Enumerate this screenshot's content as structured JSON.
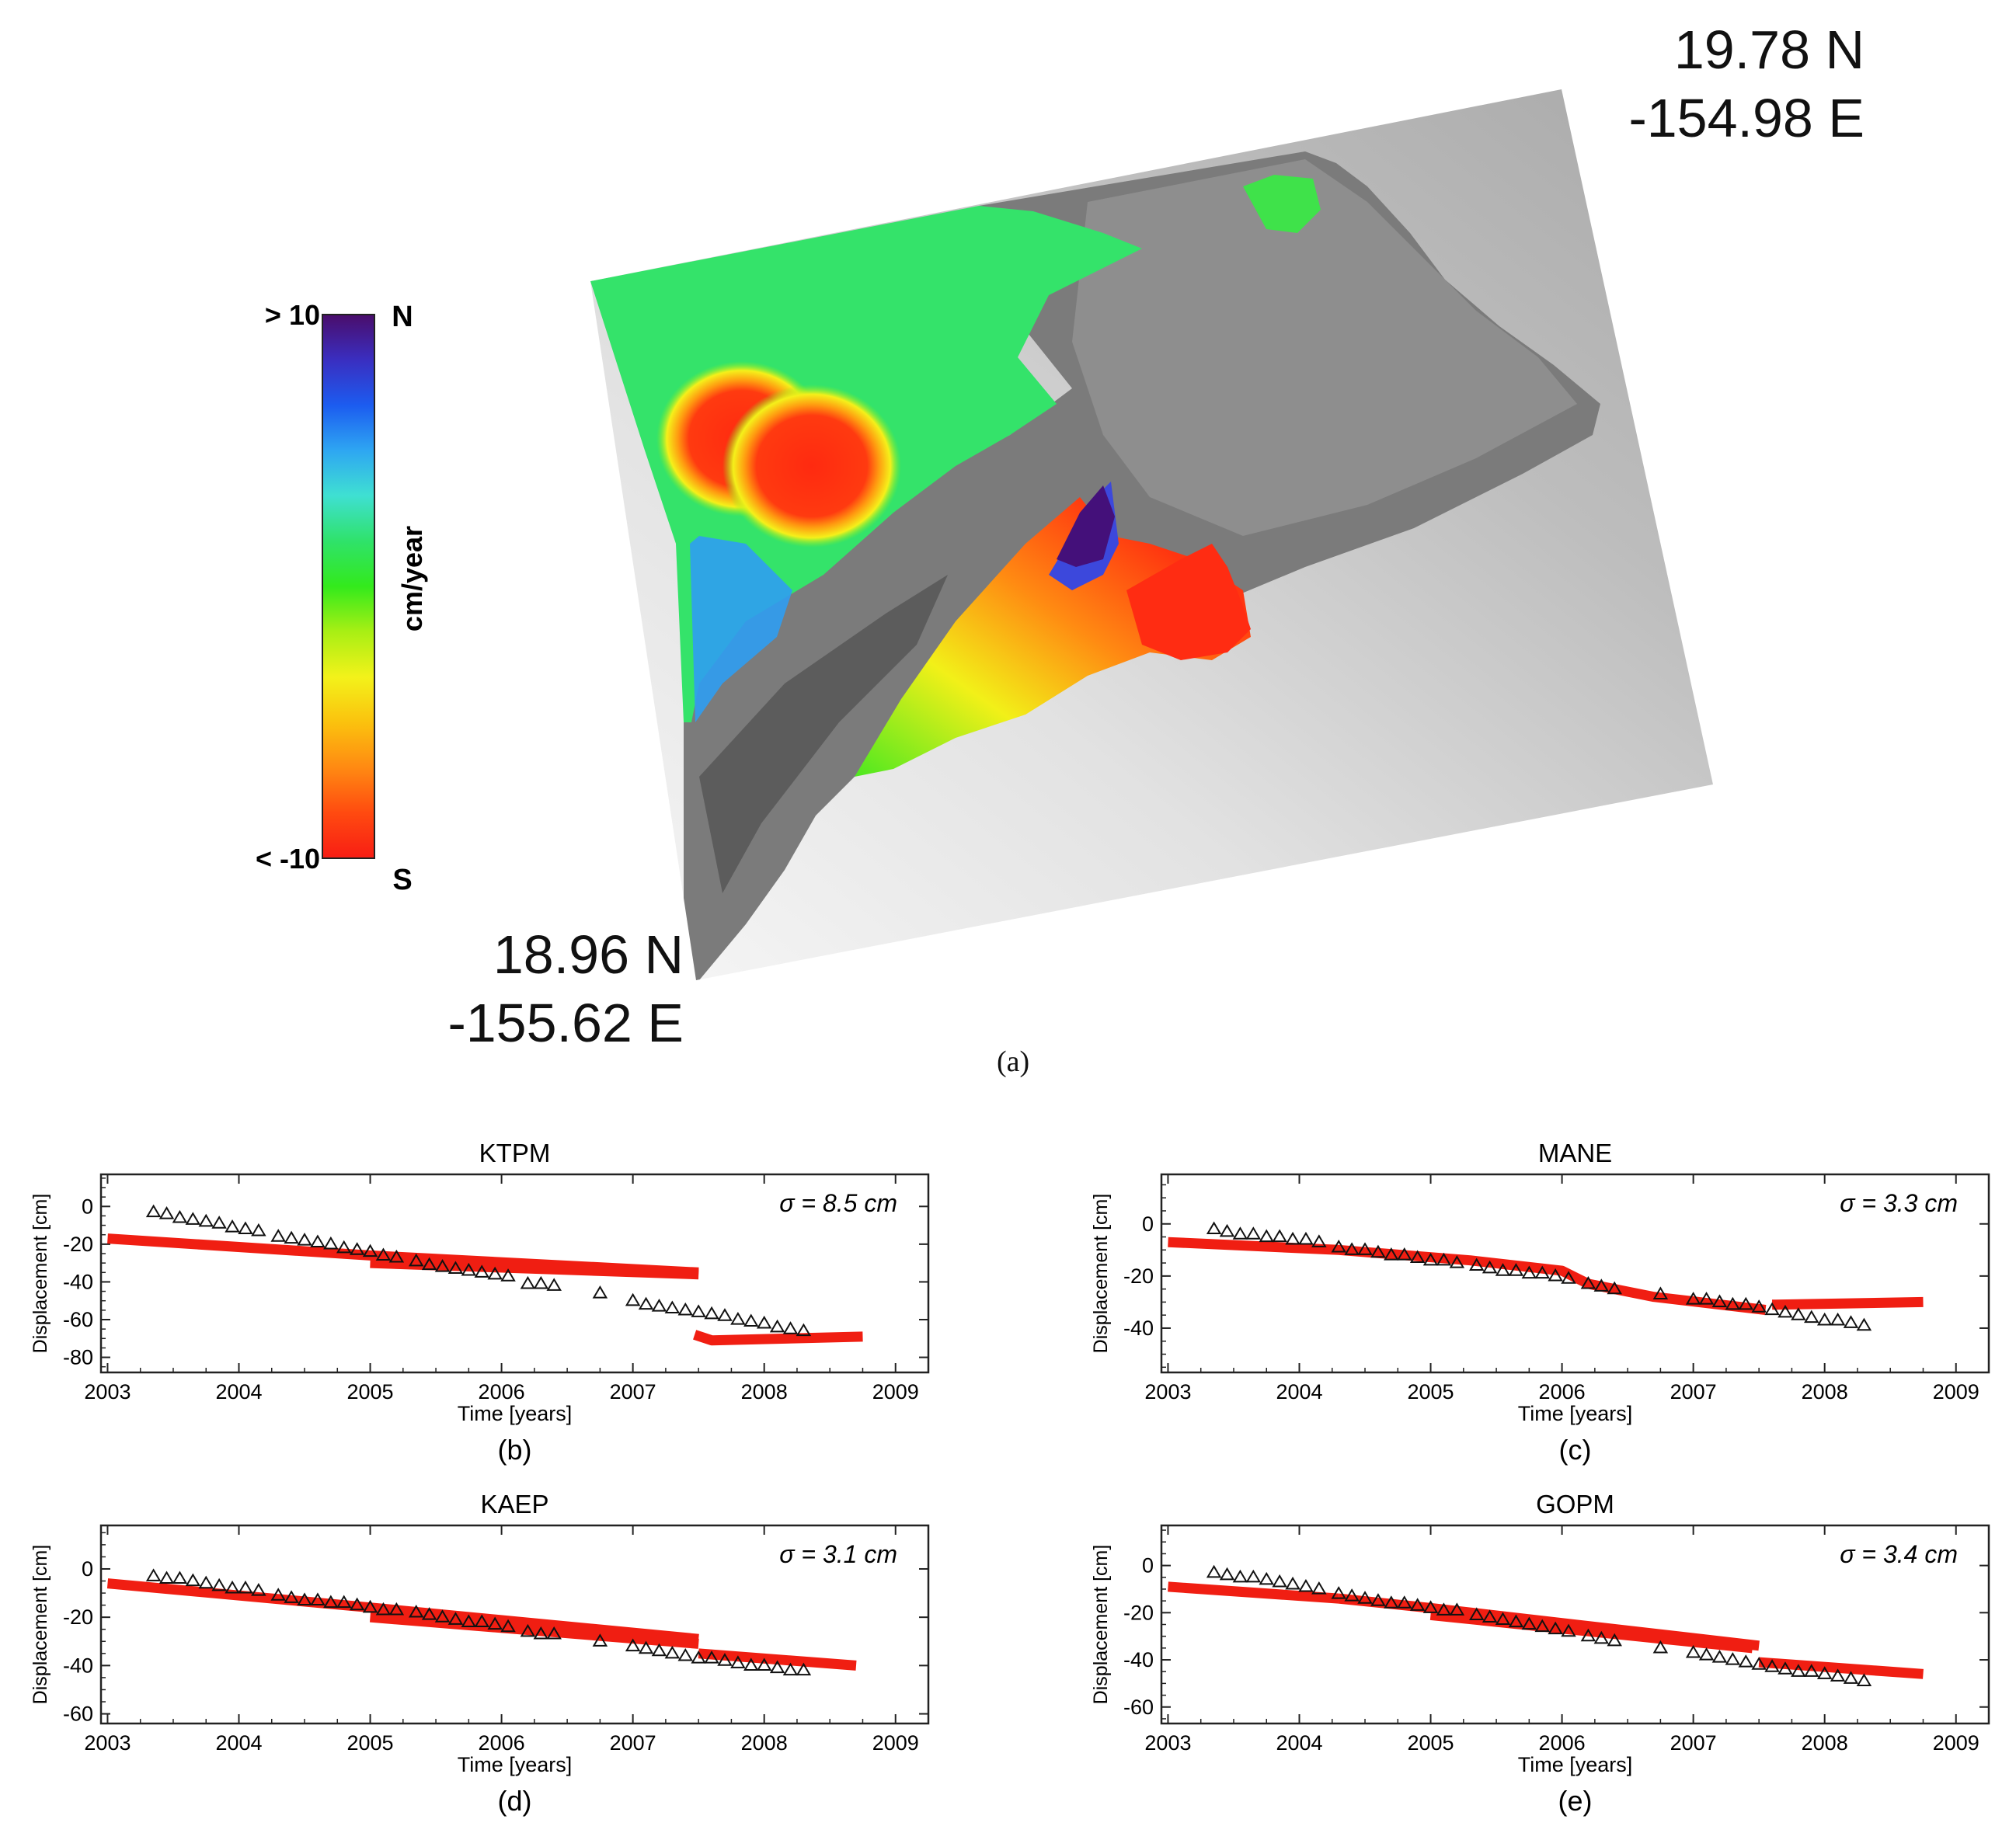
{
  "figure": {
    "caption_a": "(a)",
    "corner_top_right": {
      "lat": "19.78 N",
      "lon": "-154.98 E"
    },
    "corner_bottom_left": {
      "lat": "18.96 N",
      "lon": "-155.62 E"
    },
    "colorbar": {
      "max_label": "> 10",
      "min_label": "< -10",
      "unit_label": "cm/year",
      "top_dir": "N",
      "bottom_dir": "S",
      "colors": [
        "#4a0d6b",
        "#3a2ec0",
        "#1c5cf0",
        "#2ea6f2",
        "#3fe0d2",
        "#2fe26a",
        "#33ea1c",
        "#a8ef14",
        "#f3f21a",
        "#fbc20e",
        "#ff8a12",
        "#ff4a10",
        "#f81d14"
      ]
    }
  },
  "colors": {
    "model": "#f01e12",
    "gps": "#111111"
  },
  "chart_data": [
    {
      "type": "scatter",
      "title": "KTPM",
      "caption": "(b)",
      "sigma_label": "σ = 8.5 cm",
      "xlabel": "Time [years]",
      "ylabel": "Displacement [cm]",
      "xlim": [
        2002.95,
        2009.25
      ],
      "ylim": [
        -88,
        17
      ],
      "xticks": [
        "2003",
        "2004",
        "2005",
        "2006",
        "2007",
        "2008",
        "2009"
      ],
      "yticks": [
        "0",
        "-20",
        "-40",
        "-60",
        "-80"
      ],
      "series": [
        {
          "segments": [
            [
              [
                2003.0,
                -17
              ],
              [
                2005.0,
                -26
              ],
              [
                2007.5,
                -35
              ]
            ],
            [
              [
                2005.0,
                -30
              ],
              [
                2007.5,
                -36
              ]
            ],
            [
              [
                2007.47,
                -68
              ],
              [
                2007.6,
                -71
              ],
              [
                2008.75,
                -69
              ]
            ]
          ]
        },
        {
          "points": [
            [
              2003.35,
              -3
            ],
            [
              2003.45,
              -4
            ],
            [
              2003.55,
              -6
            ],
            [
              2003.65,
              -7
            ],
            [
              2003.75,
              -8
            ],
            [
              2003.85,
              -9
            ],
            [
              2003.95,
              -11
            ],
            [
              2004.05,
              -12
            ],
            [
              2004.15,
              -13
            ],
            [
              2004.3,
              -16
            ],
            [
              2004.4,
              -17
            ],
            [
              2004.5,
              -18
            ],
            [
              2004.6,
              -19
            ],
            [
              2004.7,
              -20
            ],
            [
              2004.8,
              -22
            ],
            [
              2004.9,
              -23
            ],
            [
              2005.0,
              -24
            ],
            [
              2005.1,
              -26
            ],
            [
              2005.2,
              -27
            ],
            [
              2005.35,
              -29
            ],
            [
              2005.45,
              -31
            ],
            [
              2005.55,
              -32
            ],
            [
              2005.65,
              -33
            ],
            [
              2005.75,
              -34
            ],
            [
              2005.85,
              -35
            ],
            [
              2005.95,
              -36
            ],
            [
              2006.05,
              -37
            ],
            [
              2006.2,
              -41
            ],
            [
              2006.3,
              -41
            ],
            [
              2006.4,
              -42
            ],
            [
              2006.75,
              -46
            ],
            [
              2007.0,
              -50
            ],
            [
              2007.1,
              -52
            ],
            [
              2007.2,
              -53
            ],
            [
              2007.3,
              -54
            ],
            [
              2007.4,
              -55
            ],
            [
              2007.5,
              -56
            ],
            [
              2007.6,
              -57
            ],
            [
              2007.7,
              -58
            ],
            [
              2007.8,
              -60
            ],
            [
              2007.9,
              -61
            ],
            [
              2008.0,
              -62
            ],
            [
              2008.1,
              -64
            ],
            [
              2008.2,
              -65
            ],
            [
              2008.3,
              -66
            ]
          ]
        }
      ]
    },
    {
      "type": "scatter",
      "title": "MANE",
      "caption": "(c)",
      "sigma_label": "σ = 3.3 cm",
      "xlabel": "Time [years]",
      "ylabel": "Displacement [cm]",
      "xlim": [
        2002.95,
        2009.25
      ],
      "ylim": [
        -57,
        19
      ],
      "xticks": [
        "2003",
        "2004",
        "2005",
        "2006",
        "2007",
        "2008",
        "2009"
      ],
      "yticks": [
        "0",
        "-20",
        "-40"
      ],
      "series": [
        {
          "segments": [
            [
              [
                2003.0,
                -7
              ],
              [
                2004.3,
                -10
              ],
              [
                2005.3,
                -14
              ],
              [
                2006.0,
                -18
              ],
              [
                2006.2,
                -23
              ],
              [
                2006.7,
                -28
              ],
              [
                2007.55,
                -33
              ]
            ],
            [
              [
                2007.6,
                -31
              ],
              [
                2008.75,
                -30
              ]
            ]
          ]
        },
        {
          "points": [
            [
              2003.35,
              -2
            ],
            [
              2003.45,
              -3
            ],
            [
              2003.55,
              -4
            ],
            [
              2003.65,
              -4
            ],
            [
              2003.75,
              -5
            ],
            [
              2003.85,
              -5
            ],
            [
              2003.95,
              -6
            ],
            [
              2004.05,
              -6
            ],
            [
              2004.15,
              -7
            ],
            [
              2004.3,
              -9
            ],
            [
              2004.4,
              -10
            ],
            [
              2004.5,
              -10
            ],
            [
              2004.6,
              -11
            ],
            [
              2004.7,
              -12
            ],
            [
              2004.8,
              -12
            ],
            [
              2004.9,
              -13
            ],
            [
              2005.0,
              -14
            ],
            [
              2005.1,
              -14
            ],
            [
              2005.2,
              -15
            ],
            [
              2005.35,
              -16
            ],
            [
              2005.45,
              -17
            ],
            [
              2005.55,
              -18
            ],
            [
              2005.65,
              -18
            ],
            [
              2005.75,
              -19
            ],
            [
              2005.85,
              -19
            ],
            [
              2005.95,
              -20
            ],
            [
              2006.05,
              -21
            ],
            [
              2006.2,
              -23
            ],
            [
              2006.3,
              -24
            ],
            [
              2006.4,
              -25
            ],
            [
              2006.75,
              -27
            ],
            [
              2007.0,
              -29
            ],
            [
              2007.1,
              -29
            ],
            [
              2007.2,
              -30
            ],
            [
              2007.3,
              -31
            ],
            [
              2007.4,
              -31
            ],
            [
              2007.5,
              -32
            ],
            [
              2007.6,
              -33
            ],
            [
              2007.7,
              -34
            ],
            [
              2007.8,
              -35
            ],
            [
              2007.9,
              -36
            ],
            [
              2008.0,
              -37
            ],
            [
              2008.1,
              -37
            ],
            [
              2008.2,
              -38
            ],
            [
              2008.3,
              -39
            ]
          ]
        }
      ]
    },
    {
      "type": "scatter",
      "title": "KAEP",
      "caption": "(d)",
      "sigma_label": "σ = 3.1 cm",
      "xlabel": "Time [years]",
      "ylabel": "Displacement [cm]",
      "xlim": [
        2002.95,
        2009.25
      ],
      "ylim": [
        -64,
        18
      ],
      "xticks": [
        "2003",
        "2004",
        "2005",
        "2006",
        "2007",
        "2008",
        "2009"
      ],
      "yticks": [
        "0",
        "-20",
        "-40",
        "-60"
      ],
      "series": [
        {
          "segments": [
            [
              [
                2003.0,
                -6
              ],
              [
                2005.0,
                -16
              ],
              [
                2007.5,
                -29
              ]
            ],
            [
              [
                2005.0,
                -20
              ],
              [
                2007.5,
                -31
              ]
            ],
            [
              [
                2007.5,
                -35
              ],
              [
                2008.7,
                -40
              ]
            ]
          ]
        },
        {
          "points": [
            [
              2003.35,
              -3
            ],
            [
              2003.45,
              -4
            ],
            [
              2003.55,
              -4
            ],
            [
              2003.65,
              -5
            ],
            [
              2003.75,
              -6
            ],
            [
              2003.85,
              -7
            ],
            [
              2003.95,
              -8
            ],
            [
              2004.05,
              -8
            ],
            [
              2004.15,
              -9
            ],
            [
              2004.3,
              -11
            ],
            [
              2004.4,
              -12
            ],
            [
              2004.5,
              -13
            ],
            [
              2004.6,
              -13
            ],
            [
              2004.7,
              -14
            ],
            [
              2004.8,
              -14
            ],
            [
              2004.9,
              -15
            ],
            [
              2005.0,
              -16
            ],
            [
              2005.1,
              -17
            ],
            [
              2005.2,
              -17
            ],
            [
              2005.35,
              -18
            ],
            [
              2005.45,
              -19
            ],
            [
              2005.55,
              -20
            ],
            [
              2005.65,
              -21
            ],
            [
              2005.75,
              -22
            ],
            [
              2005.85,
              -22
            ],
            [
              2005.95,
              -23
            ],
            [
              2006.05,
              -24
            ],
            [
              2006.2,
              -26
            ],
            [
              2006.3,
              -27
            ],
            [
              2006.4,
              -27
            ],
            [
              2006.75,
              -30
            ],
            [
              2007.0,
              -32
            ],
            [
              2007.1,
              -33
            ],
            [
              2007.2,
              -34
            ],
            [
              2007.3,
              -35
            ],
            [
              2007.4,
              -36
            ],
            [
              2007.5,
              -37
            ],
            [
              2007.6,
              -37
            ],
            [
              2007.7,
              -38
            ],
            [
              2007.8,
              -39
            ],
            [
              2007.9,
              -40
            ],
            [
              2008.0,
              -40
            ],
            [
              2008.1,
              -41
            ],
            [
              2008.2,
              -42
            ],
            [
              2008.3,
              -42
            ]
          ]
        }
      ]
    },
    {
      "type": "scatter",
      "title": "GOPM",
      "caption": "(e)",
      "sigma_label": "σ = 3.4 cm",
      "xlabel": "Time [years]",
      "ylabel": "Displacement [cm]",
      "xlim": [
        2002.95,
        2009.25
      ],
      "ylim": [
        -67,
        17
      ],
      "xticks": [
        "2003",
        "2004",
        "2005",
        "2006",
        "2007",
        "2008",
        "2009"
      ],
      "yticks": [
        "0",
        "-20",
        "-40",
        "-60"
      ],
      "series": [
        {
          "segments": [
            [
              [
                2003.0,
                -9
              ],
              [
                2004.3,
                -14
              ]
            ],
            [
              [
                2004.3,
                -14
              ],
              [
                2005.0,
                -18
              ],
              [
                2007.5,
                -34
              ]
            ],
            [
              [
                2005.0,
                -21
              ],
              [
                2007.45,
                -35
              ]
            ],
            [
              [
                2007.5,
                -41
              ],
              [
                2008.75,
                -46
              ]
            ]
          ]
        },
        {
          "points": [
            [
              2003.35,
              -3
            ],
            [
              2003.45,
              -4
            ],
            [
              2003.55,
              -5
            ],
            [
              2003.65,
              -5
            ],
            [
              2003.75,
              -6
            ],
            [
              2003.85,
              -7
            ],
            [
              2003.95,
              -8
            ],
            [
              2004.05,
              -9
            ],
            [
              2004.15,
              -10
            ],
            [
              2004.3,
              -12
            ],
            [
              2004.4,
              -13
            ],
            [
              2004.5,
              -14
            ],
            [
              2004.6,
              -15
            ],
            [
              2004.7,
              -16
            ],
            [
              2004.8,
              -16
            ],
            [
              2004.9,
              -17
            ],
            [
              2005.0,
              -18
            ],
            [
              2005.1,
              -19
            ],
            [
              2005.2,
              -19
            ],
            [
              2005.35,
              -21
            ],
            [
              2005.45,
              -22
            ],
            [
              2005.55,
              -23
            ],
            [
              2005.65,
              -24
            ],
            [
              2005.75,
              -25
            ],
            [
              2005.85,
              -26
            ],
            [
              2005.95,
              -27
            ],
            [
              2006.05,
              -28
            ],
            [
              2006.2,
              -30
            ],
            [
              2006.3,
              -31
            ],
            [
              2006.4,
              -32
            ],
            [
              2006.75,
              -35
            ],
            [
              2007.0,
              -37
            ],
            [
              2007.1,
              -38
            ],
            [
              2007.2,
              -39
            ],
            [
              2007.3,
              -40
            ],
            [
              2007.4,
              -41
            ],
            [
              2007.5,
              -42
            ],
            [
              2007.6,
              -43
            ],
            [
              2007.7,
              -44
            ],
            [
              2007.8,
              -45
            ],
            [
              2007.9,
              -45
            ],
            [
              2008.0,
              -46
            ],
            [
              2008.1,
              -47
            ],
            [
              2008.2,
              -48
            ],
            [
              2008.3,
              -49
            ]
          ]
        }
      ]
    }
  ]
}
